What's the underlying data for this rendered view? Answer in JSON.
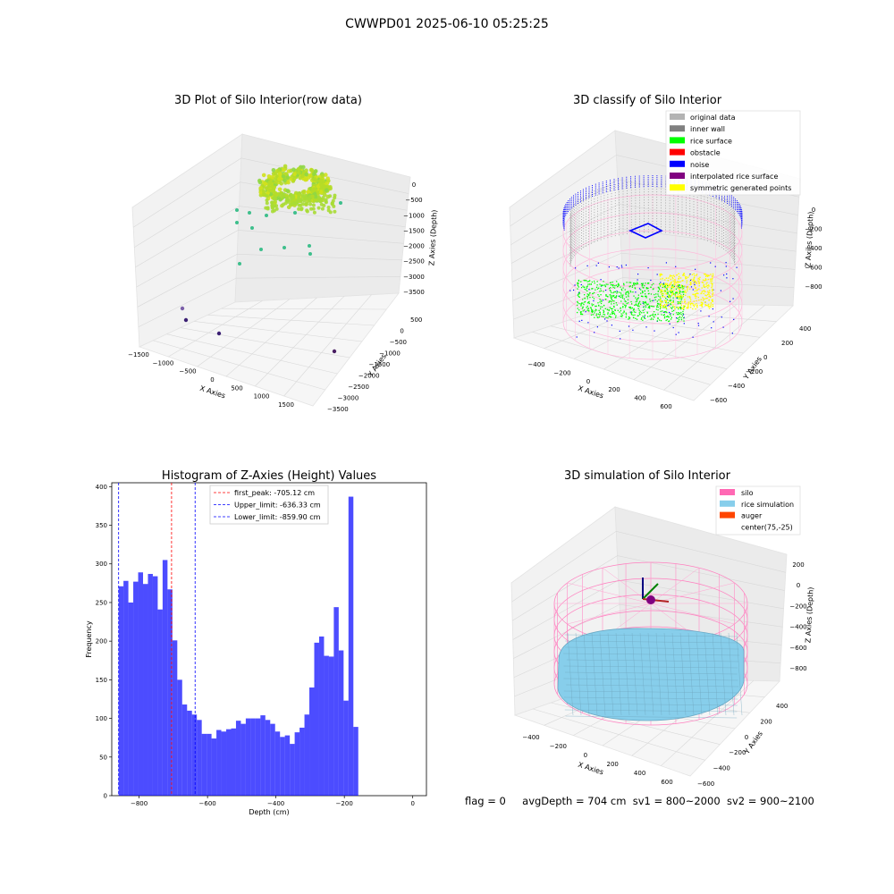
{
  "figure_title": "CWWPD01 2025-06-10 05:25:25",
  "footer": {
    "flag": "flag = 0",
    "avg_depth": "avgDepth = 704 cm",
    "sv1": "sv1 = 800~2000",
    "sv2": "sv2 = 900~2100"
  },
  "chart_data": [
    {
      "type": "scatter",
      "title": "3D Plot of Silo Interior(row data)",
      "xlabel": "X Axies",
      "ylabel": "Y Axies",
      "zlabel": "Z Axies (Depth)",
      "x_ticks": [
        "−1500",
        "−1000",
        "−500",
        "0",
        "500",
        "1000",
        "1500"
      ],
      "y_ticks": [
        "500",
        "0",
        "−500",
        "−1000",
        "−1500",
        "−2000",
        "−2500",
        "−3000",
        "−3500"
      ],
      "z_ticks": [
        "0",
        "−500",
        "−1000",
        "−1500",
        "−2000",
        "−2500",
        "−3000",
        "−3500"
      ],
      "colors": {
        "surface": "#b5dc28",
        "mid": "#3ebf8c",
        "deep": "#3b1f73"
      }
    },
    {
      "type": "scatter",
      "title": "3D classify of Silo Interior",
      "xlabel": "X Axies",
      "ylabel": "Y Axies",
      "zlabel": "Z Axies (Depth)",
      "x_ticks": [
        "−400",
        "−200",
        "0",
        "200",
        "400",
        "600"
      ],
      "y_ticks": [
        "400",
        "200",
        "0",
        "−200",
        "−400",
        "−600"
      ],
      "z_ticks": [
        "0",
        "−200",
        "−400",
        "−600",
        "−800"
      ],
      "legend_position": "top-right",
      "legend": [
        {
          "label": "original data",
          "color": "#b3b3b3"
        },
        {
          "label": "inner wall",
          "color": "#808080"
        },
        {
          "label": "rice surface",
          "color": "#00ff00"
        },
        {
          "label": "obstacle",
          "color": "#ff0000"
        },
        {
          "label": "noise",
          "color": "#0000ff"
        },
        {
          "label": "interpolated rice surface",
          "color": "#800080"
        },
        {
          "label": "symmetric generated points",
          "color": "#ffff00"
        }
      ]
    },
    {
      "type": "bar",
      "title": "Histogram of Z-Axies (Height) Values",
      "xlabel": "Depth (cm)",
      "ylabel": "Frequency",
      "xlim": [
        -880,
        40
      ],
      "ylim": [
        0,
        405
      ],
      "x_ticks": [
        -800,
        -600,
        -400,
        -200,
        0
      ],
      "x_tick_labels": [
        "−800",
        "−600",
        "−400",
        "−200",
        "0"
      ],
      "y_ticks": [
        0,
        50,
        100,
        150,
        200,
        250,
        300,
        350,
        400
      ],
      "bin_start": -860,
      "bin_width": 14.3,
      "bar_color": "#0000ff",
      "values": [
        271,
        278,
        250,
        277,
        289,
        274,
        287,
        284,
        241,
        305,
        267,
        201,
        150,
        118,
        110,
        105,
        98,
        80,
        80,
        74,
        85,
        83,
        86,
        87,
        97,
        93,
        100,
        100,
        100,
        104,
        98,
        93,
        83,
        76,
        78,
        67,
        82,
        88,
        105,
        140,
        198,
        206,
        181,
        180,
        244,
        188,
        123,
        387,
        89
      ],
      "vlines": [
        {
          "value": -705.12,
          "label": "first_peak: -705.12 cm",
          "color": "#ff0000"
        },
        {
          "value": -636.33,
          "label": "Upper_limit: -636.33 cm",
          "color": "#0000ff"
        },
        {
          "value": -859.9,
          "label": "Lower_limit: -859.90 cm",
          "color": "#0000ff"
        }
      ],
      "legend_position": "top-center"
    },
    {
      "type": "scatter",
      "title": "3D simulation of Silo Interior",
      "xlabel": "X Axies",
      "ylabel": "Y Axies",
      "zlabel": "Z Axies (Depth)",
      "x_ticks": [
        "−400",
        "−200",
        "0",
        "200",
        "400",
        "600"
      ],
      "y_ticks": [
        "400",
        "200",
        "0",
        "−200",
        "−400",
        "−600"
      ],
      "z_ticks": [
        "200",
        "0",
        "−200",
        "−400",
        "−600",
        "−800"
      ],
      "legend_position": "top-right",
      "legend": [
        {
          "label": "silo",
          "color": "#ff69b4"
        },
        {
          "label": "rice simulation",
          "color": "#87ceeb"
        },
        {
          "label": "auger",
          "color": "#ff4500"
        },
        {
          "label": "center(75,-25)",
          "color": "#ffffff"
        }
      ]
    }
  ]
}
